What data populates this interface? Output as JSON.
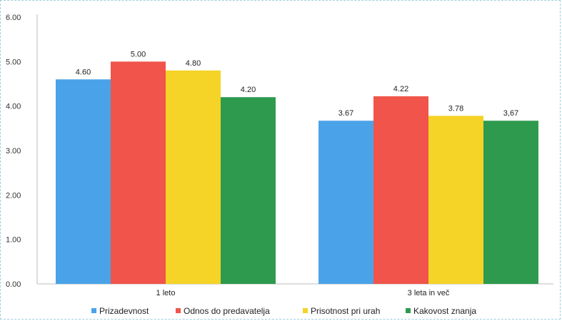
{
  "chart_data": {
    "type": "bar",
    "categories": [
      "1 leto",
      "3 leta in več"
    ],
    "series": [
      {
        "name": "Prizadevnost",
        "values": [
          4.6,
          3.67
        ],
        "labels": [
          "4.60",
          "3.67"
        ],
        "color": "#4aa3e8"
      },
      {
        "name": "Odnos do predavatelja",
        "values": [
          5.0,
          4.22
        ],
        "labels": [
          "5.00",
          "4.22"
        ],
        "color": "#f0544a"
      },
      {
        "name": "Prisotnost pri urah",
        "values": [
          4.8,
          3.78
        ],
        "labels": [
          "4.80",
          "3.78"
        ],
        "color": "#f5d327"
      },
      {
        "name": "Kakovost znanja",
        "values": [
          4.2,
          3.67
        ],
        "labels": [
          "4.20",
          "3,67"
        ],
        "color": "#2e9a4e"
      }
    ],
    "yticks": [
      "0.00",
      "1.00",
      "2.00",
      "3.00",
      "4.00",
      "5.00",
      "6.00"
    ],
    "ylim": [
      0,
      6
    ],
    "title": "",
    "xlabel": "",
    "ylabel": "",
    "grid": false,
    "legend_position": "bottom"
  }
}
